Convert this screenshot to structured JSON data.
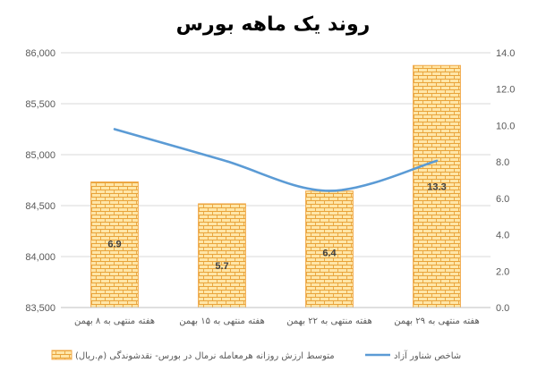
{
  "chart_data": {
    "type": "bar",
    "title": "روند یک ماهه بورس",
    "categories": [
      "هفته منتهی به ۸ بهمن",
      "هفته منتهی به ۱۵ بهمن",
      "هفته منتهی به ۲۲ بهمن",
      "هفته منتهی به ۲۹ بهمن"
    ],
    "left_axis": {
      "ylim": [
        83500,
        86000
      ],
      "ticks": [
        83500,
        84000,
        84500,
        85000,
        85500,
        86000
      ],
      "tick_labels": [
        "83,500",
        "84,000",
        "84,500",
        "85,000",
        "85,500",
        "86,000"
      ]
    },
    "right_axis": {
      "ylim": [
        0,
        14
      ],
      "ticks": [
        0,
        2,
        4,
        6,
        8,
        10,
        12,
        14
      ],
      "tick_labels": [
        "0.0",
        "2.0",
        "4.0",
        "6.0",
        "8.0",
        "10.0",
        "12.0",
        "14.0"
      ]
    },
    "series": [
      {
        "name": "متوسط ارزش روزانه هرمعامله نرمال در بورس- نقدشوندگی (م.ریال)",
        "type": "bar",
        "axis": "right",
        "values": [
          6.9,
          5.7,
          6.4,
          13.3
        ],
        "data_labels": [
          "6.9",
          "5.7",
          "6.4",
          "13.3"
        ],
        "color": "#f5c77e",
        "pattern": "brick"
      },
      {
        "name": "شاخص شناور آزاد",
        "type": "line",
        "axis": "left",
        "values": [
          85250,
          84950,
          84645,
          84940
        ],
        "color": "#5b9bd5",
        "smooth": true
      }
    ],
    "legend_position": "bottom",
    "grid": "horizontal"
  }
}
